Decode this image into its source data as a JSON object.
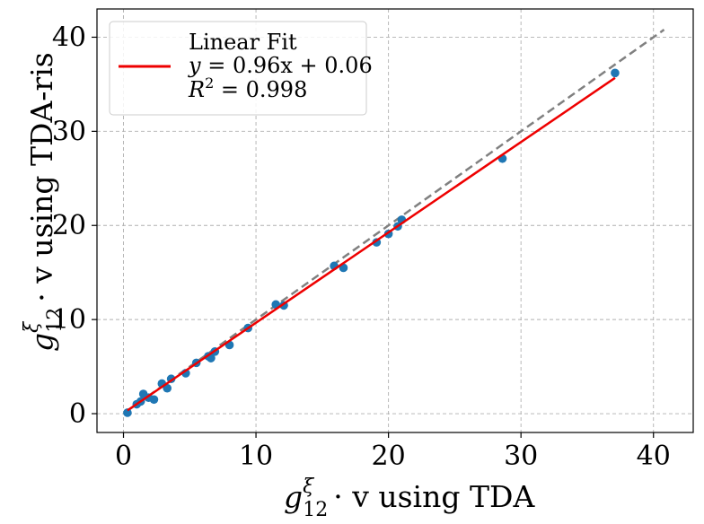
{
  "chart_data": {
    "type": "scatter",
    "title": "",
    "xlabel": {
      "base": "g",
      "sup": "ξ",
      "sub": "12",
      "rest": "· v using TDA"
    },
    "ylabel": {
      "base": "g",
      "sup": "ξ",
      "sub": "12",
      "rest": "· v using TDA-ris"
    },
    "xlim": [
      -2,
      43
    ],
    "ylim": [
      -2,
      43
    ],
    "xticks": [
      0,
      10,
      20,
      30,
      40
    ],
    "yticks": [
      0,
      10,
      20,
      30,
      40
    ],
    "xtick_labels": [
      "0",
      "10",
      "20",
      "30",
      "40"
    ],
    "ytick_labels": [
      "0",
      "10",
      "20",
      "30",
      "40"
    ],
    "grid": true,
    "colors": {
      "points": "#1f77b4",
      "fit": "#ee0000",
      "identity": "#808080"
    },
    "series": [
      {
        "name": "data",
        "points": [
          [
            0.3,
            0.1
          ],
          [
            1.0,
            1.0
          ],
          [
            1.3,
            1.3
          ],
          [
            1.5,
            2.1
          ],
          [
            1.9,
            1.7
          ],
          [
            2.3,
            1.5
          ],
          [
            2.9,
            3.2
          ],
          [
            3.3,
            2.7
          ],
          [
            3.6,
            3.7
          ],
          [
            4.7,
            4.3
          ],
          [
            5.5,
            5.4
          ],
          [
            6.4,
            6.1
          ],
          [
            6.6,
            5.9
          ],
          [
            6.9,
            6.6
          ],
          [
            8.0,
            7.3
          ],
          [
            9.4,
            9.1
          ],
          [
            11.5,
            11.6
          ],
          [
            12.1,
            11.5
          ],
          [
            15.9,
            15.7
          ],
          [
            16.6,
            15.5
          ],
          [
            19.1,
            18.2
          ],
          [
            20.0,
            19.1
          ],
          [
            20.7,
            19.9
          ],
          [
            21.0,
            20.6
          ],
          [
            28.6,
            27.1
          ],
          [
            37.1,
            36.2
          ]
        ]
      },
      {
        "name": "Linear Fit",
        "slope": 0.96,
        "intercept": 0.06,
        "x_range": [
          0.3,
          37.1
        ]
      },
      {
        "name": "identity",
        "x_range": [
          0.3,
          40.8
        ]
      }
    ],
    "legend": {
      "position": "top-left",
      "label": "Linear Fit",
      "equation": {
        "lhs": "y",
        "rhs": "0.96x + 0.06"
      },
      "r2": {
        "lhs": "R",
        "sup": "2",
        "rhs": "0.998"
      }
    }
  }
}
